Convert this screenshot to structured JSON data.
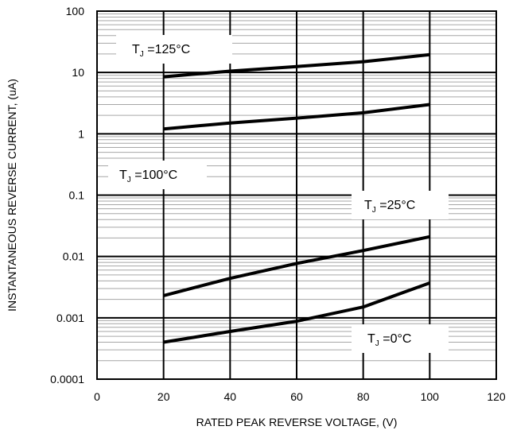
{
  "chart_data": {
    "type": "line",
    "xlabel": "RATED PEAK REVERSE VOLTAGE, (V)",
    "ylabel": "INSTANTANEOUS REVERSE CURRENT, (uA)",
    "x_scale": "linear",
    "y_scale": "log",
    "xlim": [
      0,
      120
    ],
    "ylim": [
      0.0001,
      100
    ],
    "x_ticks": [
      "0",
      "20",
      "40",
      "60",
      "80",
      "100",
      "120"
    ],
    "y_ticks": [
      "100",
      "10",
      "1",
      "0.1",
      "0.01",
      "0.001",
      "0.0001"
    ],
    "grid": true,
    "series": [
      {
        "name": "TJ =125°C",
        "x": [
          20,
          40,
          60,
          80,
          100
        ],
        "y": [
          8.5,
          10.5,
          12.5,
          15,
          19.5
        ]
      },
      {
        "name": "TJ =100°C",
        "x": [
          20,
          40,
          60,
          80,
          100
        ],
        "y": [
          1.2,
          1.5,
          1.8,
          2.2,
          3.0
        ]
      },
      {
        "name": "TJ =25°C",
        "x": [
          20,
          40,
          60,
          80,
          100
        ],
        "y": [
          0.0023,
          0.0044,
          0.0077,
          0.0125,
          0.021
        ]
      },
      {
        "name": "TJ =0°C",
        "x": [
          20,
          40,
          60,
          80,
          100
        ],
        "y": [
          0.0004,
          0.0006,
          0.00088,
          0.0015,
          0.0037
        ]
      }
    ],
    "labels": [
      {
        "main": "T",
        "sub": "J",
        "rest": " =125°C"
      },
      {
        "main": "T",
        "sub": "J",
        "rest": " =100°C"
      },
      {
        "main": "T",
        "sub": "J",
        "rest": " =25°C"
      },
      {
        "main": "T",
        "sub": "J",
        "rest": " =0°C"
      }
    ]
  }
}
